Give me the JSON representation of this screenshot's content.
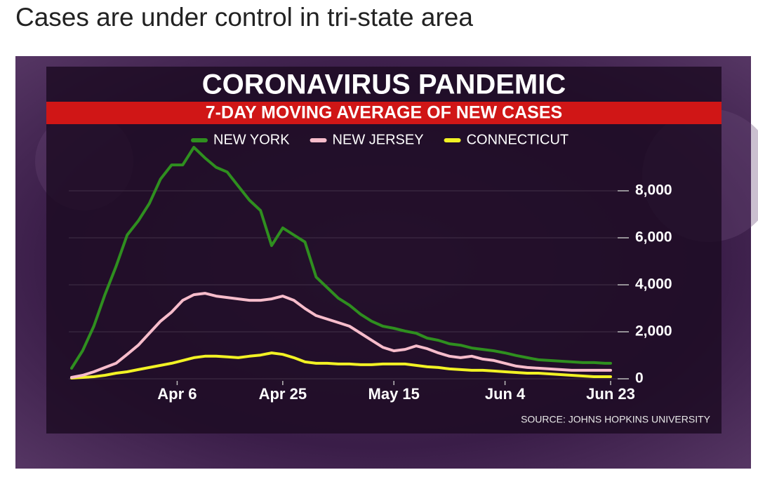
{
  "headline": "Cases are under control in tri-state area",
  "chart_data": {
    "type": "line",
    "title": "CORONAVIRUS PANDEMIC",
    "subtitle": "7-DAY MOVING AVERAGE OF NEW CASES",
    "source": "SOURCE: JOHNS HOPKINS UNIVERSITY",
    "x": [
      0,
      2,
      4,
      6,
      8,
      10,
      12,
      14,
      16,
      18,
      20,
      22,
      24,
      26,
      28,
      30,
      32,
      34,
      36,
      38,
      40,
      42,
      44,
      46,
      48,
      50,
      52,
      54,
      56,
      58,
      60,
      62,
      64,
      66,
      68,
      70,
      72,
      74,
      76,
      78,
      80,
      82,
      84,
      86,
      88,
      90,
      92,
      94,
      96,
      97
    ],
    "xlim": [
      0,
      97
    ],
    "xticks": [
      {
        "value": 19,
        "label": "Apr 6"
      },
      {
        "value": 38,
        "label": "Apr 25"
      },
      {
        "value": 58,
        "label": "May 15"
      },
      {
        "value": 78,
        "label": "Jun 4"
      },
      {
        "value": 97,
        "label": "Jun 23"
      }
    ],
    "ylim": [
      0,
      10000
    ],
    "yticks": [
      0,
      {
        "value": 2000,
        "label": "2,000"
      },
      {
        "value": 4000,
        "label": "4,000"
      },
      {
        "value": 6000,
        "label": "6,000"
      },
      {
        "value": 8000,
        "label": "8,000"
      }
    ],
    "grid": true,
    "series": [
      {
        "name": "NEW YORK",
        "color": "#2f8f1f",
        "values": [
          450,
          1200,
          2240,
          3580,
          4780,
          6120,
          6720,
          7460,
          8500,
          9100,
          9100,
          9850,
          9400,
          9000,
          8800,
          8200,
          7600,
          7160,
          5670,
          6420,
          6120,
          5820,
          4330,
          3880,
          3430,
          3130,
          2750,
          2450,
          2240,
          2150,
          2030,
          1940,
          1730,
          1640,
          1490,
          1430,
          1310,
          1250,
          1190,
          1100,
          990,
          900,
          810,
          780,
          750,
          720,
          690,
          690,
          660,
          660
        ]
      },
      {
        "name": "NEW JERSEY",
        "color": "#f7bccb",
        "values": [
          60,
          150,
          300,
          480,
          660,
          1040,
          1430,
          1940,
          2450,
          2840,
          3340,
          3580,
          3640,
          3520,
          3460,
          3400,
          3340,
          3340,
          3400,
          3520,
          3340,
          2990,
          2690,
          2540,
          2390,
          2240,
          1940,
          1640,
          1340,
          1190,
          1250,
          1400,
          1280,
          1100,
          960,
          900,
          960,
          840,
          780,
          660,
          540,
          480,
          450,
          420,
          390,
          360,
          360,
          360,
          360,
          360
        ]
      },
      {
        "name": "CONNECTICUT",
        "color": "#f2f224",
        "values": [
          30,
          60,
          90,
          150,
          240,
          300,
          390,
          480,
          570,
          660,
          780,
          900,
          960,
          960,
          930,
          900,
          960,
          1010,
          1100,
          1040,
          900,
          720,
          660,
          660,
          630,
          630,
          600,
          600,
          630,
          630,
          630,
          570,
          510,
          480,
          420,
          390,
          360,
          360,
          330,
          300,
          270,
          240,
          240,
          210,
          180,
          150,
          120,
          90,
          90,
          90
        ]
      }
    ]
  }
}
